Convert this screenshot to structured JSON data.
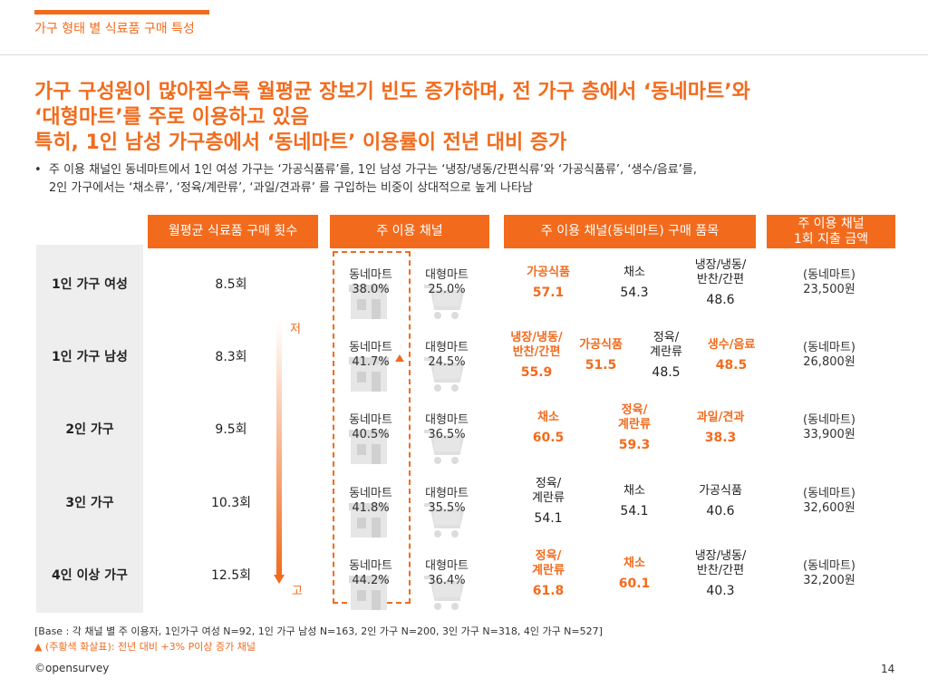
{
  "section_title": "가구 형태 별 식료품 구매 특성",
  "headline": [
    "가구 구성원이 많아질수록 월평균 장보기 빈도 증가하며, 전 가구 층에서 ‘동네마트’와",
    "‘대형마트’를 주로 이용하고 있음",
    "특히, 1인 남성 가구층에서 ‘동네마트’ 이용률이 전년 대비 증가"
  ],
  "bullet": [
    "주 이용 채널인 동네마트에서 1인 여성 가구는 ‘가공식품류’를, 1인 남성 가구는 ‘냉장/냉동/간편식류’와 ‘가공식품류’, ‘생수/음료’를,",
    "2인 가구에서는 ‘채소류’, ‘정육/계란류’, ‘과일/견과류’ 를 구입하는 비중이 상대적으로 높게 나타남"
  ],
  "columns": {
    "frequency": "월평균 식료품 구매 횟수",
    "channel": "주 이용 채널",
    "items": "주 이용 채널(동네마트) 구매 품목",
    "spend": [
      "주 이용 채널",
      "1회 지출 금액"
    ]
  },
  "arrow": {
    "top": "저",
    "bottom": "고"
  },
  "rows": [
    {
      "label": "1인 가구 여성",
      "frequency": "8.5회",
      "local": {
        "name": "동네마트",
        "value": "38.0%",
        "up": false
      },
      "large": {
        "name": "대형마트",
        "value": "25.0%"
      },
      "items": [
        {
          "name": [
            "가공식품"
          ],
          "value": "57.1",
          "highlight": true
        },
        {
          "name": [
            "채소"
          ],
          "value": "54.3",
          "highlight": false
        },
        {
          "name": [
            "냉장/냉동/",
            "반찬/간편"
          ],
          "value": "48.6",
          "highlight": false
        }
      ],
      "spend": [
        "(동네마트)",
        "23,500원"
      ]
    },
    {
      "label": "1인 가구 남성",
      "frequency": "8.3회",
      "local": {
        "name": "동네마트",
        "value": "41.7%",
        "up": true
      },
      "large": {
        "name": "대형마트",
        "value": "24.5%"
      },
      "items": [
        {
          "name": [
            "냉장/냉동/",
            "반찬/간편"
          ],
          "value": "55.9",
          "highlight": true
        },
        {
          "name": [
            "가공식품"
          ],
          "value": "51.5",
          "highlight": true
        },
        {
          "name": [
            "정육/",
            "계란류"
          ],
          "value": "48.5",
          "highlight": false
        },
        {
          "name": [
            "생수/음료"
          ],
          "value": "48.5",
          "highlight": true
        }
      ],
      "spend": [
        "(동네마트)",
        "26,800원"
      ]
    },
    {
      "label": "2인 가구",
      "frequency": "9.5회",
      "local": {
        "name": "동네마트",
        "value": "40.5%",
        "up": false
      },
      "large": {
        "name": "대형마트",
        "value": "36.5%"
      },
      "items": [
        {
          "name": [
            "채소"
          ],
          "value": "60.5",
          "highlight": true
        },
        {
          "name": [
            "정육/",
            "계란류"
          ],
          "value": "59.3",
          "highlight": true
        },
        {
          "name": [
            "과일/견과"
          ],
          "value": "38.3",
          "highlight": true
        }
      ],
      "spend": [
        "(동네마트)",
        "33,900원"
      ]
    },
    {
      "label": "3인 가구",
      "frequency": "10.3회",
      "local": {
        "name": "동네마트",
        "value": "41.8%",
        "up": false
      },
      "large": {
        "name": "대형마트",
        "value": "35.5%"
      },
      "items": [
        {
          "name": [
            "정육/",
            "계란류"
          ],
          "value": "54.1",
          "highlight": false
        },
        {
          "name": [
            "채소"
          ],
          "value": "54.1",
          "highlight": false
        },
        {
          "name": [
            "가공식품"
          ],
          "value": "40.6",
          "highlight": false
        }
      ],
      "spend": [
        "(동네마트)",
        "32,600원"
      ]
    },
    {
      "label": "4인 이상 가구",
      "frequency": "12.5회",
      "local": {
        "name": "동네마트",
        "value": "44.2%",
        "up": false
      },
      "large": {
        "name": "대형마트",
        "value": "36.4%"
      },
      "items": [
        {
          "name": [
            "정육/",
            "계란류"
          ],
          "value": "61.8",
          "highlight": true
        },
        {
          "name": [
            "채소"
          ],
          "value": "60.1",
          "highlight": true
        },
        {
          "name": [
            "냉장/냉동/",
            "반찬/간편"
          ],
          "value": "40.3",
          "highlight": false
        }
      ],
      "spend": [
        "(동네마트)",
        "32,200원"
      ]
    }
  ],
  "notes": {
    "base": "[Base : 각 채널 별 주 이용자, 1인가구 여성 N=92, 1인 가구 남성 N=163, 2인 가구 N=200, 3인 가구 N=318, 4인 가구 N=527]",
    "legend": "▲ (주황색 화살표): 전년 대비 +3% P이상 증가 채널"
  },
  "footer": {
    "logo": "©opensurvey",
    "page": "14"
  },
  "colors": {
    "accent": "#f26b1d",
    "row_label_bg": "#eeeeee"
  },
  "icons": {
    "local_store": "store-icon",
    "large_store": "cart-icon"
  }
}
